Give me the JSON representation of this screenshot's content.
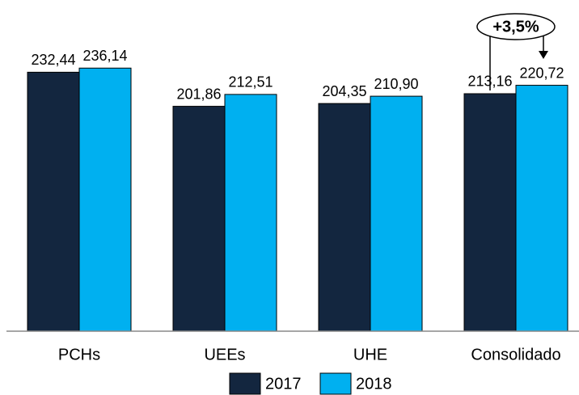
{
  "chart_data": {
    "type": "bar",
    "categories": [
      "PCHs",
      "UEEs",
      "UHE",
      "Consolidado"
    ],
    "series": [
      {
        "name": "2017",
        "color": "#13263f",
        "values": [
          232.44,
          201.86,
          204.35,
          213.16
        ],
        "value_labels": [
          "232,44",
          "201,86",
          "204,35",
          "213,16"
        ]
      },
      {
        "name": "2018",
        "color": "#00b0f0",
        "values": [
          236.14,
          212.51,
          210.9,
          220.72
        ],
        "value_labels": [
          "236,14",
          "212,51",
          "210,90",
          "220,72"
        ]
      }
    ],
    "ylim": [
      0,
      290
    ],
    "annotation": "+3,5%",
    "legend": "bottom"
  }
}
